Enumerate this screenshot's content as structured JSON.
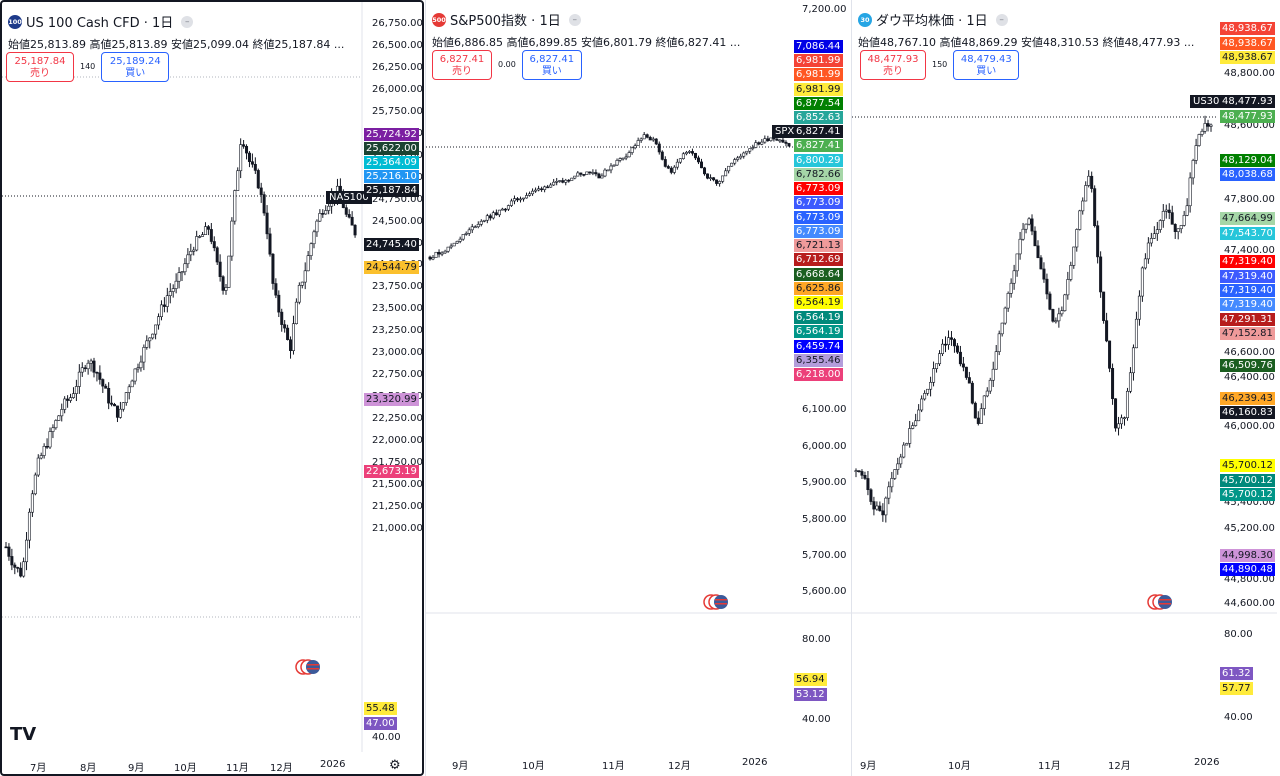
{
  "panes": [
    {
      "symbol": "US 100 Cash CFD · 1日",
      "icon": {
        "text": "100",
        "color": "#1e3a8a"
      },
      "ohlc": "始値25,813.89 高値25,813.89 安値25,099.04 終値25,187.84 ...",
      "sell": {
        "price": "25,187.84",
        "label": "売り"
      },
      "spread": "140",
      "buy": {
        "price": "25,189.24",
        "label": "買い"
      },
      "price_ticks": [
        "26,750.00",
        "26,500.00",
        "26,250.00",
        "26,000.00",
        "25,750.00",
        "25,500.00",
        "25,250.00",
        "25,000.00",
        "24,750.00",
        "24,500.00",
        "24,250.00",
        "24,000.00",
        "23,750.00",
        "23,500.00",
        "23,250.00",
        "23,000.00",
        "22,750.00",
        "22,500.00",
        "22,250.00",
        "22,000.00",
        "21,750.00",
        "21,500.00",
        "21,250.00",
        "21,000.00"
      ],
      "osc_ticks": [
        "40.00"
      ],
      "symbol_label": "NAS100",
      "tags": [
        {
          "text": "25,724.92",
          "color": "#7b1fa2"
        },
        {
          "text": "25,622.00",
          "color": "#1b4332"
        },
        {
          "text": "25,364.09",
          "color": "#00bcd4"
        },
        {
          "text": "25,216.10",
          "color": "#2196f3"
        },
        {
          "text": "25,187.84",
          "color": "#131722"
        },
        {
          "text": "24,745.40",
          "color": "#131722"
        },
        {
          "text": "24,544.79",
          "color": "#fbc02d"
        },
        {
          "text": "23,320.99",
          "color": "#ce93d8"
        },
        {
          "text": "22,673.19",
          "color": "#ec407a"
        },
        {
          "text": "55.48",
          "color": "#ffeb3b"
        },
        {
          "text": "47.00",
          "color": "#7e57c2"
        }
      ],
      "x_ticks": [
        "7月",
        "8月",
        "9月",
        "10月",
        "11月",
        "12月",
        "2026"
      ],
      "logo": "TV",
      "chart_data": {
        "type": "candlestick",
        "ylim": [
          21000,
          26750
        ],
        "path": [
          21800,
          21600,
          21500,
          22300,
          22700,
          22900,
          23100,
          23300,
          23400,
          23600,
          23800,
          23700,
          23500,
          23300,
          23200,
          23500,
          23700,
          23900,
          24100,
          24300,
          24500,
          24600,
          24800,
          25000,
          25100,
          25200,
          24800,
          24500,
          25400,
          26200,
          25900,
          25700,
          25300,
          24500,
          24200,
          23900,
          24500,
          24800,
          25200,
          25400,
          25500,
          25600,
          25300,
          25150
        ]
      }
    },
    {
      "symbol": "S&P500指数 · 1日",
      "icon": {
        "text": "500",
        "color": "#e53935"
      },
      "ohlc": "始値6,886.85 高値6,899.85 安値6,801.79 終値6,827.41 ...",
      "sell": {
        "price": "6,827.41",
        "label": "売り"
      },
      "spread": "0.00",
      "buy": {
        "price": "6,827.41",
        "label": "買い"
      },
      "price_ticks": [
        "7,200.00",
        "6,100.00",
        "6,000.00",
        "5,900.00",
        "5,800.00",
        "5,700.00",
        "5,600.00"
      ],
      "osc_ticks": [
        "80.00",
        "40.00"
      ],
      "symbol_label": "SPX",
      "tags": [
        {
          "text": "7,086.44",
          "color": "#0000e6"
        },
        {
          "text": "6,981.99",
          "color": "#f44336"
        },
        {
          "text": "6,981.99",
          "color": "#ff5722"
        },
        {
          "text": "6,981.99",
          "color": "#ffeb3b"
        },
        {
          "text": "6,877.54",
          "color": "#008000"
        },
        {
          "text": "6,852.63",
          "color": "#26a69a"
        },
        {
          "text": "6,827.41",
          "color": "#131722"
        },
        {
          "text": "6,827.41",
          "color": "#4caf50"
        },
        {
          "text": "6,800.29",
          "color": "#26c6da"
        },
        {
          "text": "6,782.66",
          "color": "#a5d6a7"
        },
        {
          "text": "6,773.09",
          "color": "#ff0000"
        },
        {
          "text": "6,773.09",
          "color": "#3d5afe"
        },
        {
          "text": "6,773.09",
          "color": "#2962ff"
        },
        {
          "text": "6,773.09",
          "color": "#448aff"
        },
        {
          "text": "6,721.13",
          "color": "#ef9a9a"
        },
        {
          "text": "6,712.69",
          "color": "#b71c1c"
        },
        {
          "text": "6,668.64",
          "color": "#1b5e20"
        },
        {
          "text": "6,625.86",
          "color": "#ffa726"
        },
        {
          "text": "6,564.19",
          "color": "#ffff00"
        },
        {
          "text": "6,564.19",
          "color": "#00897b"
        },
        {
          "text": "6,564.19",
          "color": "#009688"
        },
        {
          "text": "6,459.74",
          "color": "#0000ff"
        },
        {
          "text": "6,355.46",
          "color": "#b39ddb"
        },
        {
          "text": "6,218.00",
          "color": "#ec407a"
        },
        {
          "text": "56.94",
          "color": "#ffeb3b"
        },
        {
          "text": "53.12",
          "color": "#7e57c2"
        }
      ],
      "x_ticks": [
        "9月",
        "10月",
        "11月",
        "12月",
        "2026"
      ],
      "chart_data": {
        "type": "candlestick",
        "ylim": [
          6000,
          7000
        ],
        "path": [
          6300,
          6320,
          6340,
          6380,
          6410,
          6450,
          6480,
          6500,
          6520,
          6560,
          6580,
          6600,
          6620,
          6640,
          6650,
          6660,
          6690,
          6700,
          6710,
          6680,
          6730,
          6760,
          6790,
          6840,
          6880,
          6850,
          6750,
          6700,
          6780,
          6800,
          6740,
          6680,
          6650,
          6720,
          6760,
          6800,
          6830,
          6850,
          6870,
          6860,
          6827
        ]
      }
    },
    {
      "symbol": "ダウ平均株価 · 1日",
      "icon": {
        "text": "30",
        "color": "#26a5e4"
      },
      "ohlc": "始値48,767.10 高値48,869.29 安値48,310.53 終値48,477.93 ...",
      "sell": {
        "price": "48,477.93",
        "label": "売り"
      },
      "spread": "150",
      "buy": {
        "price": "48,479.43",
        "label": "買い"
      },
      "price_ticks": [
        "48,800.00",
        "48,600.00",
        "47,800.00",
        "47,400.00",
        "46,600.00",
        "46,400.00",
        "46,000.00",
        "45,400.00",
        "45,200.00",
        "45,000.00",
        "44,800.00",
        "44,600.00"
      ],
      "osc_ticks": [
        "80.00",
        "40.00"
      ],
      "symbol_label": "US30",
      "tags": [
        {
          "text": "48,938.67",
          "color": "#f44336"
        },
        {
          "text": "48,938.67",
          "color": "#ff5722"
        },
        {
          "text": "48,938.67",
          "color": "#ffeb3b"
        },
        {
          "text": "48,477.93",
          "color": "#131722"
        },
        {
          "text": "48,477.93",
          "color": "#4caf50"
        },
        {
          "text": "48,129.04",
          "color": "#008000"
        },
        {
          "text": "48,038.68",
          "color": "#2962ff"
        },
        {
          "text": "47,664.99",
          "color": "#a5d6a7"
        },
        {
          "text": "47,543.70",
          "color": "#26c6da"
        },
        {
          "text": "47,319.40",
          "color": "#ff0000"
        },
        {
          "text": "47,319.40",
          "color": "#3d5afe"
        },
        {
          "text": "47,319.40",
          "color": "#2962ff"
        },
        {
          "text": "47,319.40",
          "color": "#448aff"
        },
        {
          "text": "47,291.31",
          "color": "#b71c1c"
        },
        {
          "text": "47,152.81",
          "color": "#ef9a9a"
        },
        {
          "text": "46,509.76",
          "color": "#1b5e20"
        },
        {
          "text": "46,239.43",
          "color": "#ffa726"
        },
        {
          "text": "46,160.83",
          "color": "#131722"
        },
        {
          "text": "45,700.12",
          "color": "#ffff00"
        },
        {
          "text": "45,700.12",
          "color": "#00897b"
        },
        {
          "text": "45,700.12",
          "color": "#009688"
        },
        {
          "text": "44,998.30",
          "color": "#ce93d8"
        },
        {
          "text": "44,890.48",
          "color": "#0000ff"
        },
        {
          "text": "61.32",
          "color": "#7e57c2"
        },
        {
          "text": "57.77",
          "color": "#ffeb3b"
        }
      ],
      "x_ticks": [
        "9月",
        "10月",
        "11月",
        "12月",
        "2026"
      ],
      "chart_data": {
        "type": "candlestick",
        "ylim": [
          44600,
          49000
        ],
        "path": [
          45400,
          45300,
          45100,
          45000,
          45300,
          45500,
          45700,
          45900,
          46100,
          46300,
          46500,
          46600,
          46400,
          46200,
          45800,
          46100,
          46400,
          46800,
          47100,
          47500,
          47700,
          47300,
          47000,
          46700,
          46900,
          47300,
          47800,
          48100,
          47200,
          46500,
          45800,
          45900,
          46500,
          47200,
          47500,
          47600,
          47800,
          47500,
          47700,
          48200,
          48500,
          48478
        ]
      }
    }
  ]
}
